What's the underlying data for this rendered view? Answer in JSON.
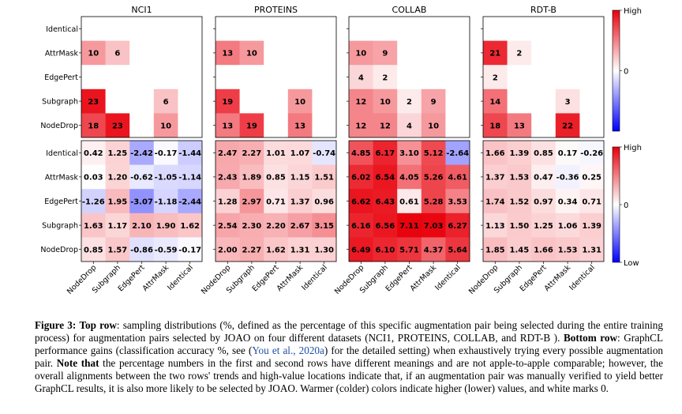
{
  "chart_data": {
    "type": "heatmap",
    "row_labels": [
      "Identical",
      "AttrMask",
      "EdgePert",
      "Subgraph",
      "NodeDrop"
    ],
    "col_labels": [
      "NodeDrop",
      "Subgraph",
      "EdgePert",
      "AttrMask",
      "Identical"
    ],
    "panels": [
      "NCI1",
      "PROTEINS",
      "COLLAB",
      "RDT-B"
    ],
    "top_row": {
      "scale": {
        "min": 0,
        "max": 25
      },
      "colorbar": {
        "high": "High",
        "zero": "0",
        "low": ""
      },
      "values": [
        [
          [
            null,
            null,
            null,
            null,
            null
          ],
          [
            10,
            6,
            null,
            null,
            null
          ],
          [
            null,
            null,
            null,
            null,
            null
          ],
          [
            23,
            null,
            null,
            6,
            null
          ],
          [
            18,
            23,
            null,
            10,
            null
          ]
        ],
        [
          [
            null,
            null,
            null,
            null,
            null
          ],
          [
            13,
            10,
            null,
            null,
            null
          ],
          [
            null,
            null,
            null,
            null,
            null
          ],
          [
            19,
            null,
            null,
            10,
            null
          ],
          [
            13,
            19,
            null,
            13,
            null
          ]
        ],
        [
          [
            null,
            null,
            null,
            null,
            null
          ],
          [
            10,
            9,
            null,
            null,
            null
          ],
          [
            4,
            2,
            null,
            null,
            null
          ],
          [
            12,
            10,
            2,
            9,
            null
          ],
          [
            12,
            12,
            4,
            10,
            null
          ]
        ],
        [
          [
            null,
            null,
            null,
            null,
            null
          ],
          [
            21,
            2,
            null,
            null,
            null
          ],
          [
            2,
            null,
            null,
            null,
            null
          ],
          [
            14,
            null,
            null,
            3,
            null
          ],
          [
            18,
            13,
            null,
            22,
            null
          ]
        ]
      ]
    },
    "bottom_row": {
      "colorbar": {
        "high": "High",
        "zero": "0",
        "low": "Low"
      },
      "values": [
        [
          [
            0.42,
            1.25,
            -2.42,
            -0.17,
            -1.44
          ],
          [
            0.03,
            1.2,
            -0.62,
            -1.05,
            -1.14
          ],
          [
            -1.26,
            1.95,
            -3.07,
            -1.18,
            -2.44
          ],
          [
            1.63,
            1.17,
            2.1,
            1.9,
            1.62
          ],
          [
            0.85,
            1.57,
            -0.86,
            -0.59,
            -0.17
          ]
        ],
        [
          [
            2.47,
            2.27,
            1.01,
            1.07,
            -0.74
          ],
          [
            2.43,
            1.89,
            0.85,
            1.15,
            1.51
          ],
          [
            1.28,
            2.97,
            0.71,
            1.37,
            0.96
          ],
          [
            2.54,
            2.3,
            2.2,
            2.67,
            3.15
          ],
          [
            2.0,
            2.27,
            1.62,
            1.31,
            1.3
          ]
        ],
        [
          [
            4.85,
            6.17,
            3.1,
            5.12,
            -2.64
          ],
          [
            6.02,
            6.54,
            4.05,
            5.26,
            4.61
          ],
          [
            6.62,
            6.43,
            0.61,
            5.28,
            3.53
          ],
          [
            6.16,
            6.56,
            7.11,
            7.03,
            6.27
          ],
          [
            6.49,
            6.1,
            5.71,
            4.37,
            5.64
          ]
        ],
        [
          [
            1.66,
            1.39,
            0.85,
            0.17,
            -0.26
          ],
          [
            1.37,
            1.53,
            0.47,
            -0.36,
            0.25
          ],
          [
            1.74,
            1.52,
            0.97,
            0.34,
            0.71
          ],
          [
            1.13,
            1.5,
            1.25,
            1.06,
            1.39
          ],
          [
            1.85,
            1.45,
            1.66,
            1.53,
            1.31
          ]
        ]
      ]
    },
    "colors": {
      "high": "#e8000b",
      "zero": "#ffffff",
      "low": "#0000ff"
    }
  },
  "caption": {
    "fig_label": "Figure 3:",
    "top_bold": "Top row",
    "top_text": ": sampling distributions (%, defined as the percentage of this specific augmentation pair being selected during the entire training process) for augmentation pairs selected by JOAO on four different datasets (NCI1, PROTEINS, COLLAB, and RDT-B ).",
    "bottom_bold": "Bottom row",
    "bottom_text_a": ": GraphCL performance gains (classification accuracy %, see (",
    "cite": "You et al., 2020a",
    "bottom_text_b": ") for the detailed setting) when exhaustively trying every possible augmentation pair.",
    "note_bold": "Note that",
    "note_text": "the percentage numbers in the first and second rows have different meanings and are not apple-to-apple comparable; however, the overall alignments between the two rows' trends and high-value locations indicate that, if an augmentation pair was manually verified to yield better GraphCL results, it is also more likely to be selected by JOAO. Warmer (colder) colors indicate higher (lower) values, and white marks 0."
  }
}
